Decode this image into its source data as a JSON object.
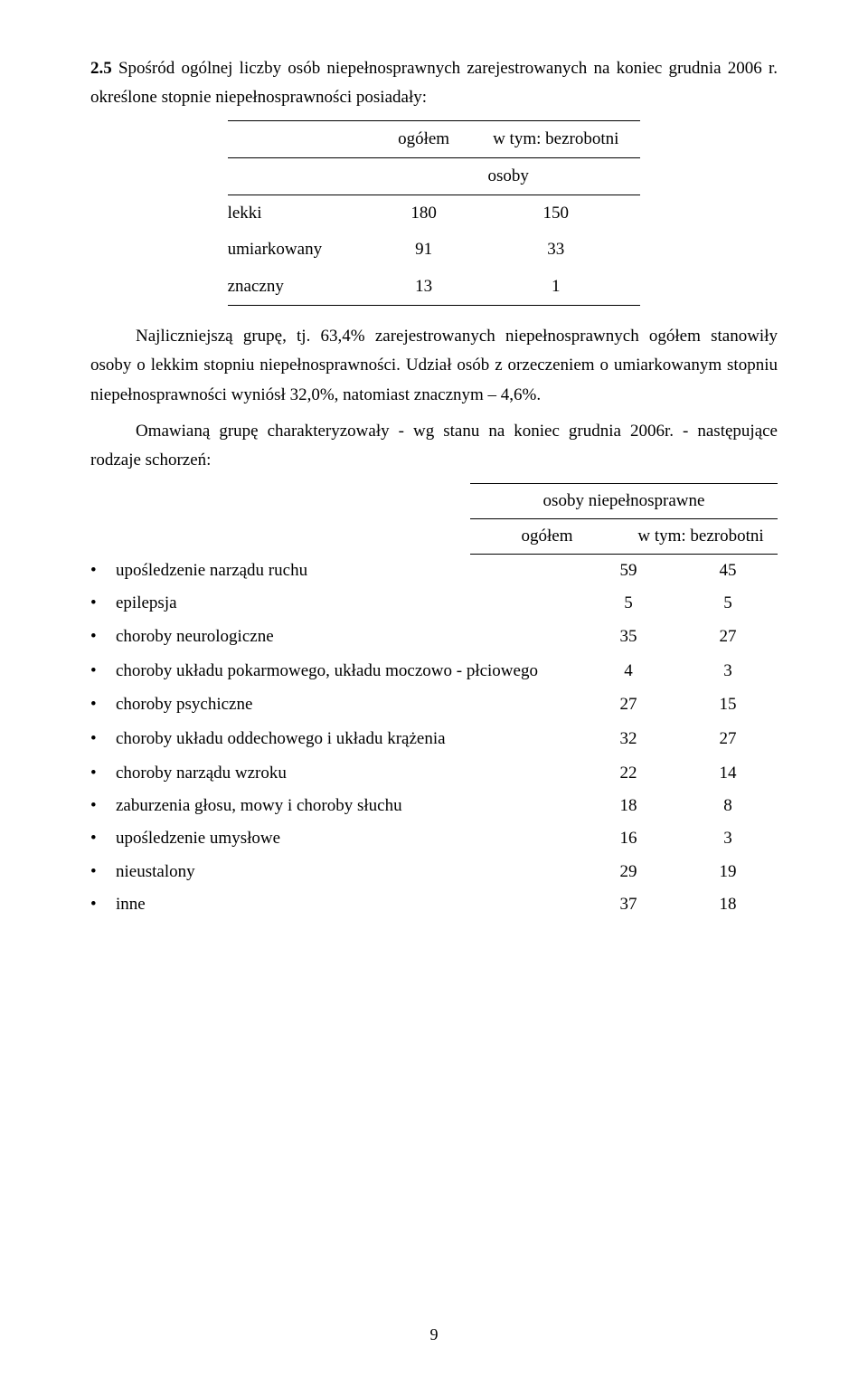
{
  "section_number": "2.5",
  "para1_a": "Spośród ogólnej liczby osób niepełnosprawnych zarejestrowanych na koniec grudnia 2006 r. określone stopnie niepełnosprawności posiadały:",
  "table1": {
    "hdr_ogolem": "ogółem",
    "hdr_wtym": "w tym: bezrobotni",
    "hdr_osoby": "osoby",
    "rows": [
      {
        "label": "lekki",
        "a": "180",
        "b": "150"
      },
      {
        "label": "umiarkowany",
        "a": "91",
        "b": "33"
      },
      {
        "label": "znaczny",
        "a": "13",
        "b": "1"
      }
    ]
  },
  "para2": "Najliczniejszą grupę, tj. 63,4% zarejestrowanych niepełnosprawnych ogółem stanowiły osoby o lekkim stopniu niepełnosprawności. Udział osób z orzeczeniem o umiarkowanym stopniu niepełnosprawności wyniósł 32,0%, natomiast znacznym – 4,6%.",
  "para3": "Omawianą grupę charakteryzowały - wg  stanu na koniec grudnia 2006r. - następujące rodzaje schorzeń:",
  "table2_header": {
    "line1": "osoby niepełnosprawne",
    "col1": "ogółem",
    "col2": "w tym: bezrobotni"
  },
  "table2_rows": [
    {
      "label": "upośledzenie narządu ruchu",
      "a": "59",
      "b": "45",
      "multi": false
    },
    {
      "label": "epilepsja",
      "a": "5",
      "b": "5",
      "multi": false
    },
    {
      "label": "choroby neurologiczne",
      "a": "35",
      "b": "27",
      "multi": false
    },
    {
      "label": "choroby układu pokarmowego, układu moczowo - płciowego",
      "a": "4",
      "b": "3",
      "multi": true
    },
    {
      "label": "choroby psychiczne",
      "a": "27",
      "b": "15",
      "multi": false
    },
    {
      "label": "choroby układu oddechowego i układu krążenia",
      "a": "32",
      "b": "27",
      "multi": true
    },
    {
      "label": "choroby narządu wzroku",
      "a": "22",
      "b": "14",
      "multi": false
    },
    {
      "label": "zaburzenia głosu, mowy i choroby słuchu",
      "a": "18",
      "b": "8",
      "multi": false
    },
    {
      "label": "upośledzenie umysłowe",
      "a": "16",
      "b": "3",
      "multi": false
    },
    {
      "label": "nieustalony",
      "a": "29",
      "b": "19",
      "multi": false
    },
    {
      "label": "inne",
      "a": "37",
      "b": "18",
      "multi": false
    }
  ],
  "page_number": "9"
}
